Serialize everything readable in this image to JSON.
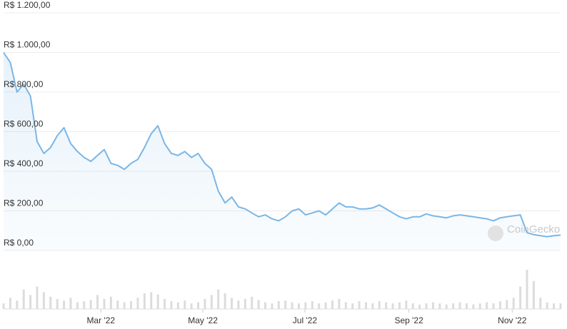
{
  "chart_data": {
    "type": "line",
    "watermark": "CoinGecko",
    "series": [
      {
        "color": "#7ab6e6",
        "values": [
          1000,
          950,
          800,
          840,
          780,
          550,
          490,
          520,
          580,
          620,
          540,
          500,
          470,
          450,
          480,
          510,
          440,
          430,
          410,
          440,
          460,
          520,
          590,
          630,
          540,
          490,
          480,
          500,
          470,
          490,
          440,
          410,
          300,
          240,
          270,
          220,
          210,
          190,
          170,
          180,
          160,
          150,
          170,
          200,
          210,
          180,
          190,
          200,
          180,
          210,
          240,
          220,
          220,
          210,
          210,
          215,
          230,
          210,
          190,
          170,
          160,
          170,
          170,
          185,
          175,
          170,
          165,
          175,
          180,
          175,
          170,
          165,
          160,
          150,
          165,
          170,
          175,
          180,
          90,
          80,
          75,
          70,
          75,
          78
        ]
      }
    ],
    "volume": [
      10,
      20,
      15,
      35,
      25,
      40,
      30,
      22,
      18,
      15,
      20,
      12,
      14,
      16,
      25,
      18,
      22,
      15,
      12,
      14,
      20,
      28,
      30,
      26,
      18,
      14,
      12,
      15,
      10,
      12,
      18,
      25,
      35,
      28,
      20,
      15,
      18,
      22,
      16,
      12,
      10,
      14,
      15,
      12,
      10,
      12,
      14,
      10,
      12,
      15,
      18,
      12,
      10,
      14,
      12,
      10,
      14,
      12,
      10,
      12,
      15,
      10,
      8,
      10,
      12,
      10,
      8,
      10,
      12,
      10,
      8,
      10,
      12,
      10,
      14,
      16,
      20,
      40,
      70,
      50,
      20,
      12,
      10,
      10
    ],
    "xlim": [
      0,
      83
    ],
    "xticks": [
      {
        "value": 14.5,
        "label": "Mar '22"
      },
      {
        "value": 29.7,
        "label": "May '22"
      },
      {
        "value": 44.9,
        "label": "Jul '22"
      },
      {
        "value": 60.4,
        "label": "Sep '22"
      },
      {
        "value": 75.8,
        "label": "Nov '22"
      }
    ],
    "ylim": [
      0,
      1200
    ],
    "yticks": [
      {
        "value": 0,
        "label": "R$ 0,00"
      },
      {
        "value": 200,
        "label": "R$ 200,00"
      },
      {
        "value": 400,
        "label": "R$ 400,00"
      },
      {
        "value": 600,
        "label": "R$ 600,00"
      },
      {
        "value": 800,
        "label": "R$ 800,00"
      },
      {
        "value": 1000,
        "label": "R$ 1.000,00"
      },
      {
        "value": 1200,
        "label": "R$ 1.200,00"
      }
    ],
    "grid": true
  }
}
